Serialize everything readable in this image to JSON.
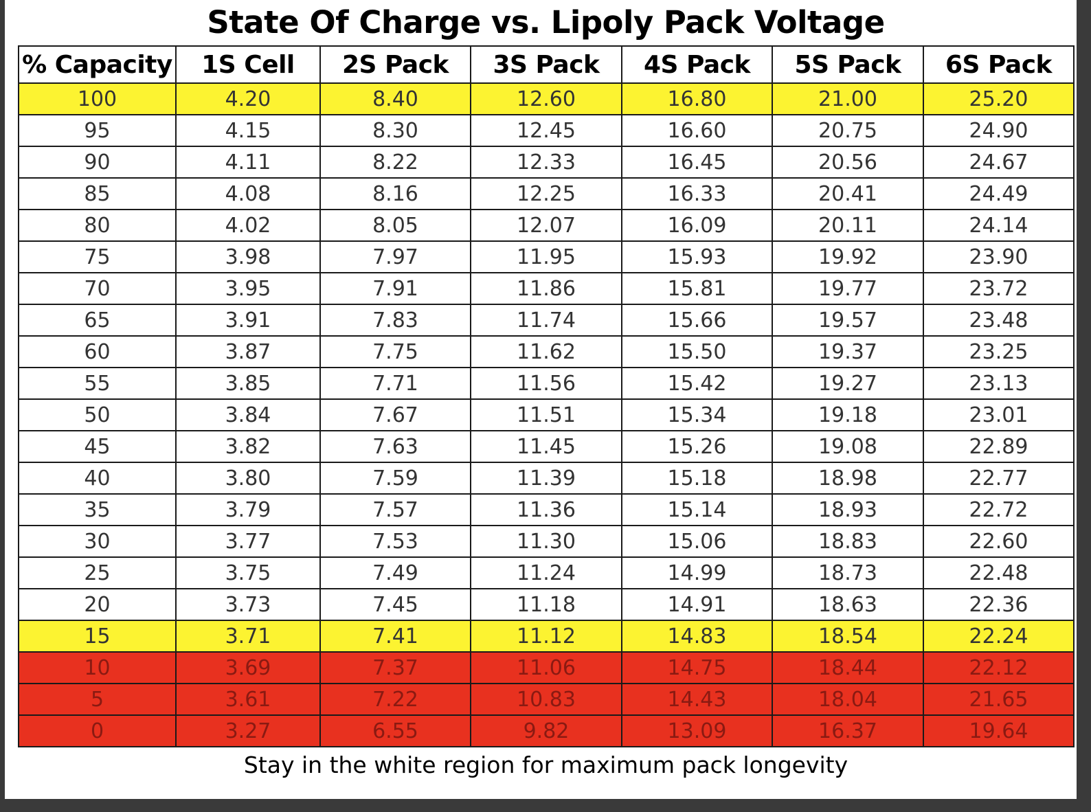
{
  "title": "State Of Charge vs. Lipoly Pack Voltage",
  "caption": "Stay in the white region for maximum pack longevity",
  "colors": {
    "yellow": "#fcf331",
    "red": "#e8311f",
    "white": "#ffffff"
  },
  "chart_data": {
    "type": "table",
    "title": "State Of Charge vs. Lipoly Pack Voltage",
    "columns": [
      "% Capacity",
      "1S Cell",
      "2S Pack",
      "3S Pack",
      "4S Pack",
      "5S Pack",
      "6S Pack"
    ],
    "rows": [
      {
        "band": "yellow",
        "cells": [
          "100",
          "4.20",
          "8.40",
          "12.60",
          "16.80",
          "21.00",
          "25.20"
        ]
      },
      {
        "band": "white",
        "cells": [
          "95",
          "4.15",
          "8.30",
          "12.45",
          "16.60",
          "20.75",
          "24.90"
        ]
      },
      {
        "band": "white",
        "cells": [
          "90",
          "4.11",
          "8.22",
          "12.33",
          "16.45",
          "20.56",
          "24.67"
        ]
      },
      {
        "band": "white",
        "cells": [
          "85",
          "4.08",
          "8.16",
          "12.25",
          "16.33",
          "20.41",
          "24.49"
        ]
      },
      {
        "band": "white",
        "cells": [
          "80",
          "4.02",
          "8.05",
          "12.07",
          "16.09",
          "20.11",
          "24.14"
        ]
      },
      {
        "band": "white",
        "cells": [
          "75",
          "3.98",
          "7.97",
          "11.95",
          "15.93",
          "19.92",
          "23.90"
        ]
      },
      {
        "band": "white",
        "cells": [
          "70",
          "3.95",
          "7.91",
          "11.86",
          "15.81",
          "19.77",
          "23.72"
        ]
      },
      {
        "band": "white",
        "cells": [
          "65",
          "3.91",
          "7.83",
          "11.74",
          "15.66",
          "19.57",
          "23.48"
        ]
      },
      {
        "band": "white",
        "cells": [
          "60",
          "3.87",
          "7.75",
          "11.62",
          "15.50",
          "19.37",
          "23.25"
        ]
      },
      {
        "band": "white",
        "cells": [
          "55",
          "3.85",
          "7.71",
          "11.56",
          "15.42",
          "19.27",
          "23.13"
        ]
      },
      {
        "band": "white",
        "cells": [
          "50",
          "3.84",
          "7.67",
          "11.51",
          "15.34",
          "19.18",
          "23.01"
        ]
      },
      {
        "band": "white",
        "cells": [
          "45",
          "3.82",
          "7.63",
          "11.45",
          "15.26",
          "19.08",
          "22.89"
        ]
      },
      {
        "band": "white",
        "cells": [
          "40",
          "3.80",
          "7.59",
          "11.39",
          "15.18",
          "18.98",
          "22.77"
        ]
      },
      {
        "band": "white",
        "cells": [
          "35",
          "3.79",
          "7.57",
          "11.36",
          "15.14",
          "18.93",
          "22.72"
        ]
      },
      {
        "band": "white",
        "cells": [
          "30",
          "3.77",
          "7.53",
          "11.30",
          "15.06",
          "18.83",
          "22.60"
        ]
      },
      {
        "band": "white",
        "cells": [
          "25",
          "3.75",
          "7.49",
          "11.24",
          "14.99",
          "18.73",
          "22.48"
        ]
      },
      {
        "band": "white",
        "cells": [
          "20",
          "3.73",
          "7.45",
          "11.18",
          "14.91",
          "18.63",
          "22.36"
        ]
      },
      {
        "band": "yellow",
        "cells": [
          "15",
          "3.71",
          "7.41",
          "11.12",
          "14.83",
          "18.54",
          "22.24"
        ]
      },
      {
        "band": "red",
        "cells": [
          "10",
          "3.69",
          "7.37",
          "11.06",
          "14.75",
          "18.44",
          "22.12"
        ]
      },
      {
        "band": "red",
        "cells": [
          "5",
          "3.61",
          "7.22",
          "10.83",
          "14.43",
          "18.04",
          "21.65"
        ]
      },
      {
        "band": "red",
        "cells": [
          "0",
          "3.27",
          "6.55",
          "9.82",
          "13.09",
          "16.37",
          "19.64"
        ]
      }
    ]
  }
}
